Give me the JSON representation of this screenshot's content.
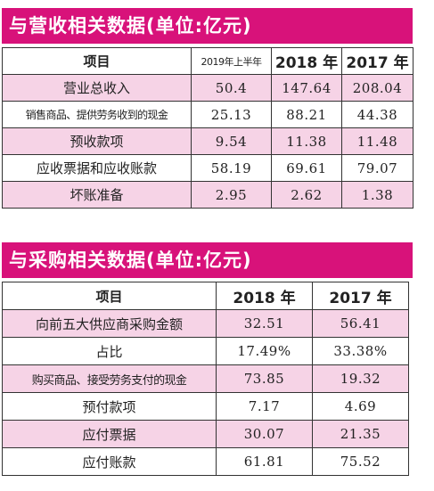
{
  "revenue_section": {
    "title": "与营收相关数据(单位:亿元)",
    "headers": [
      "项目",
      "2019年上半年",
      "2018 年",
      "2017 年"
    ],
    "rows": [
      [
        "营业总收入",
        "50.4",
        "147.64",
        "208.04"
      ],
      [
        "销售商品、提供劳务收到的现金",
        "25.13",
        "88.21",
        "44.38"
      ],
      [
        "预收款项",
        "9.54",
        "11.38",
        "11.48"
      ],
      [
        "应收票据和应收账款",
        "58.19",
        "69.61",
        "79.07"
      ],
      [
        "坏账准备",
        "2.95",
        "2.62",
        "1.38"
      ]
    ]
  },
  "purchase_section": {
    "title": "与采购相关数据(单位:亿元)",
    "headers": [
      "项目",
      "2018 年",
      "2017 年"
    ],
    "rows": [
      [
        "向前五大供应商采购金额",
        "32.51",
        "56.41"
      ],
      [
        "占比",
        "17.49%",
        "33.38%"
      ],
      [
        "购买商品、接受劳务支付的现金",
        "73.85",
        "19.32"
      ],
      [
        "预付款项",
        "7.17",
        "4.69"
      ],
      [
        "应付票据",
        "30.07",
        "21.35"
      ],
      [
        "应付账款",
        "61.81",
        "75.52"
      ]
    ]
  },
  "colors": {
    "banner": "#d8127a",
    "row_highlight": "#f6d3e6"
  }
}
